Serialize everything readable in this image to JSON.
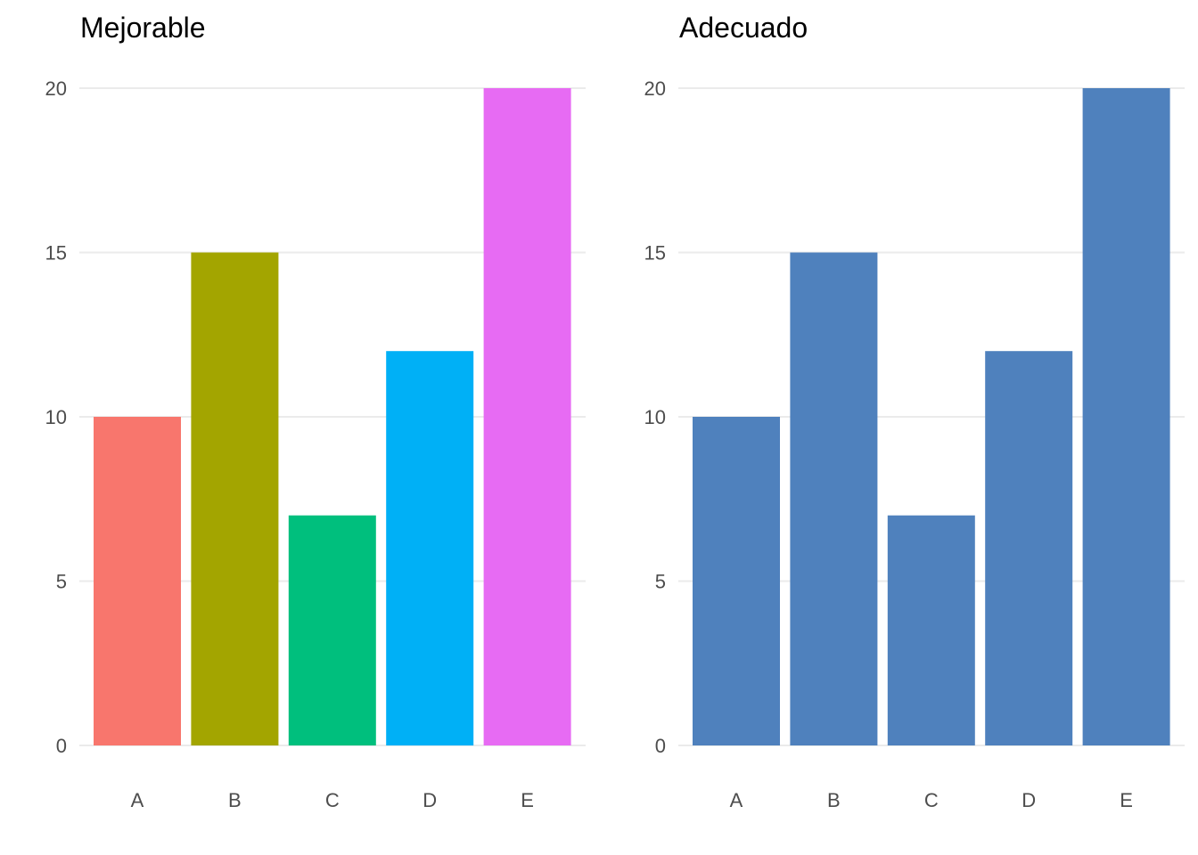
{
  "chart_data": [
    {
      "type": "bar",
      "title": "Mejorable",
      "categories": [
        "A",
        "B",
        "C",
        "D",
        "E"
      ],
      "values": [
        10,
        15,
        7,
        12,
        20
      ],
      "colors": [
        "#F8766D",
        "#A3A500",
        "#00BF7D",
        "#00B0F6",
        "#E76BF3"
      ],
      "yticks": [
        "0",
        "5",
        "10",
        "15",
        "20"
      ],
      "ytick_values": [
        0,
        5,
        10,
        15,
        20
      ],
      "ylim": [
        0,
        20
      ],
      "xlabel": "",
      "ylabel": "",
      "grid": "horizontal major"
    },
    {
      "type": "bar",
      "title": "Adecuado",
      "categories": [
        "A",
        "B",
        "C",
        "D",
        "E"
      ],
      "values": [
        10,
        15,
        7,
        12,
        20
      ],
      "colors": [
        "#4F81BD",
        "#4F81BD",
        "#4F81BD",
        "#4F81BD",
        "#4F81BD"
      ],
      "yticks": [
        "0",
        "5",
        "10",
        "15",
        "20"
      ],
      "ytick_values": [
        0,
        5,
        10,
        15,
        20
      ],
      "ylim": [
        0,
        20
      ],
      "xlabel": "",
      "ylabel": "",
      "grid": "horizontal major"
    }
  ]
}
